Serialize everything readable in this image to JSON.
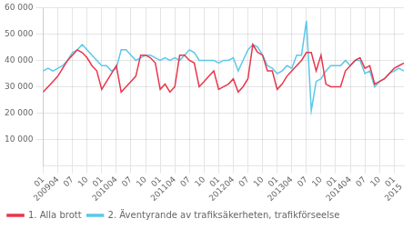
{
  "chart_data": {
    "type": "line",
    "categories": [
      "01\n2009",
      null,
      null,
      "04",
      null,
      null,
      "07",
      null,
      null,
      "10",
      null,
      null,
      "01\n2010",
      null,
      null,
      "04",
      null,
      null,
      "07",
      null,
      null,
      "10",
      null,
      null,
      "01\n2011",
      null,
      null,
      "04",
      null,
      null,
      "07",
      null,
      null,
      "10",
      null,
      null,
      "01\n2012",
      null,
      null,
      "04",
      null,
      null,
      "07",
      null,
      null,
      "10",
      null,
      null,
      "01\n2013",
      null,
      null,
      "04",
      null,
      null,
      "07",
      null,
      null,
      "10",
      null,
      null,
      "01\n2014",
      null,
      null,
      "04",
      null,
      null,
      "07",
      null,
      null,
      "10",
      null,
      null,
      "01\n2015",
      null,
      null
    ],
    "series": [
      {
        "name": "1. Alla brott",
        "color": "#e8364a",
        "values": [
          28000,
          30000,
          32000,
          34000,
          37000,
          40000,
          42000,
          44000,
          43000,
          41000,
          38000,
          36000,
          29000,
          32000,
          35000,
          38000,
          28000,
          30000,
          32000,
          34000,
          42000,
          42000,
          41000,
          39000,
          29000,
          31000,
          28000,
          30000,
          42000,
          42000,
          40000,
          39000,
          30000,
          32000,
          34000,
          36000,
          29000,
          30000,
          31000,
          33000,
          28000,
          30000,
          33000,
          46000,
          43000,
          42000,
          36000,
          36000,
          29000,
          31000,
          34000,
          36000,
          38000,
          40000,
          43000,
          43000,
          36000,
          42000,
          31000,
          30000,
          30000,
          30000,
          36000,
          38000,
          40000,
          41000,
          37000,
          38000,
          31000,
          32000,
          33000,
          35000,
          37000,
          38000,
          39000
        ]
      },
      {
        "name": "2. Äventyrande av trafiksäkerheten, trafikförseelse",
        "color": "#5bc8e8",
        "values": [
          36000,
          37000,
          36000,
          37000,
          38000,
          40000,
          43000,
          44000,
          46000,
          44000,
          42000,
          40000,
          38000,
          38000,
          36000,
          37000,
          44000,
          44000,
          42000,
          40000,
          41000,
          42000,
          42000,
          41000,
          40000,
          41000,
          40000,
          41000,
          40000,
          42000,
          44000,
          43000,
          40000,
          40000,
          40000,
          40000,
          39000,
          40000,
          40000,
          41000,
          36000,
          40000,
          44000,
          46000,
          45000,
          42000,
          38000,
          37000,
          35000,
          36000,
          38000,
          37000,
          42000,
          42000,
          55000,
          21000,
          32000,
          33000,
          36000,
          38000,
          38000,
          38000,
          40000,
          38000,
          40000,
          40000,
          35000,
          36000,
          30000,
          32000,
          33000,
          35000,
          36000,
          37000,
          36000
        ]
      }
    ],
    "ylim": [
      0,
      60000
    ],
    "yticks": [
      {
        "value": 10000,
        "label": "10 000"
      },
      {
        "value": 20000,
        "label": "20 000"
      },
      {
        "value": 30000,
        "label": "30 000"
      },
      {
        "value": 40000,
        "label": "40 000"
      },
      {
        "value": 50000,
        "label": "50 000"
      },
      {
        "value": 60000,
        "label": "60 000"
      }
    ],
    "grid": true,
    "legend": "lower left"
  }
}
